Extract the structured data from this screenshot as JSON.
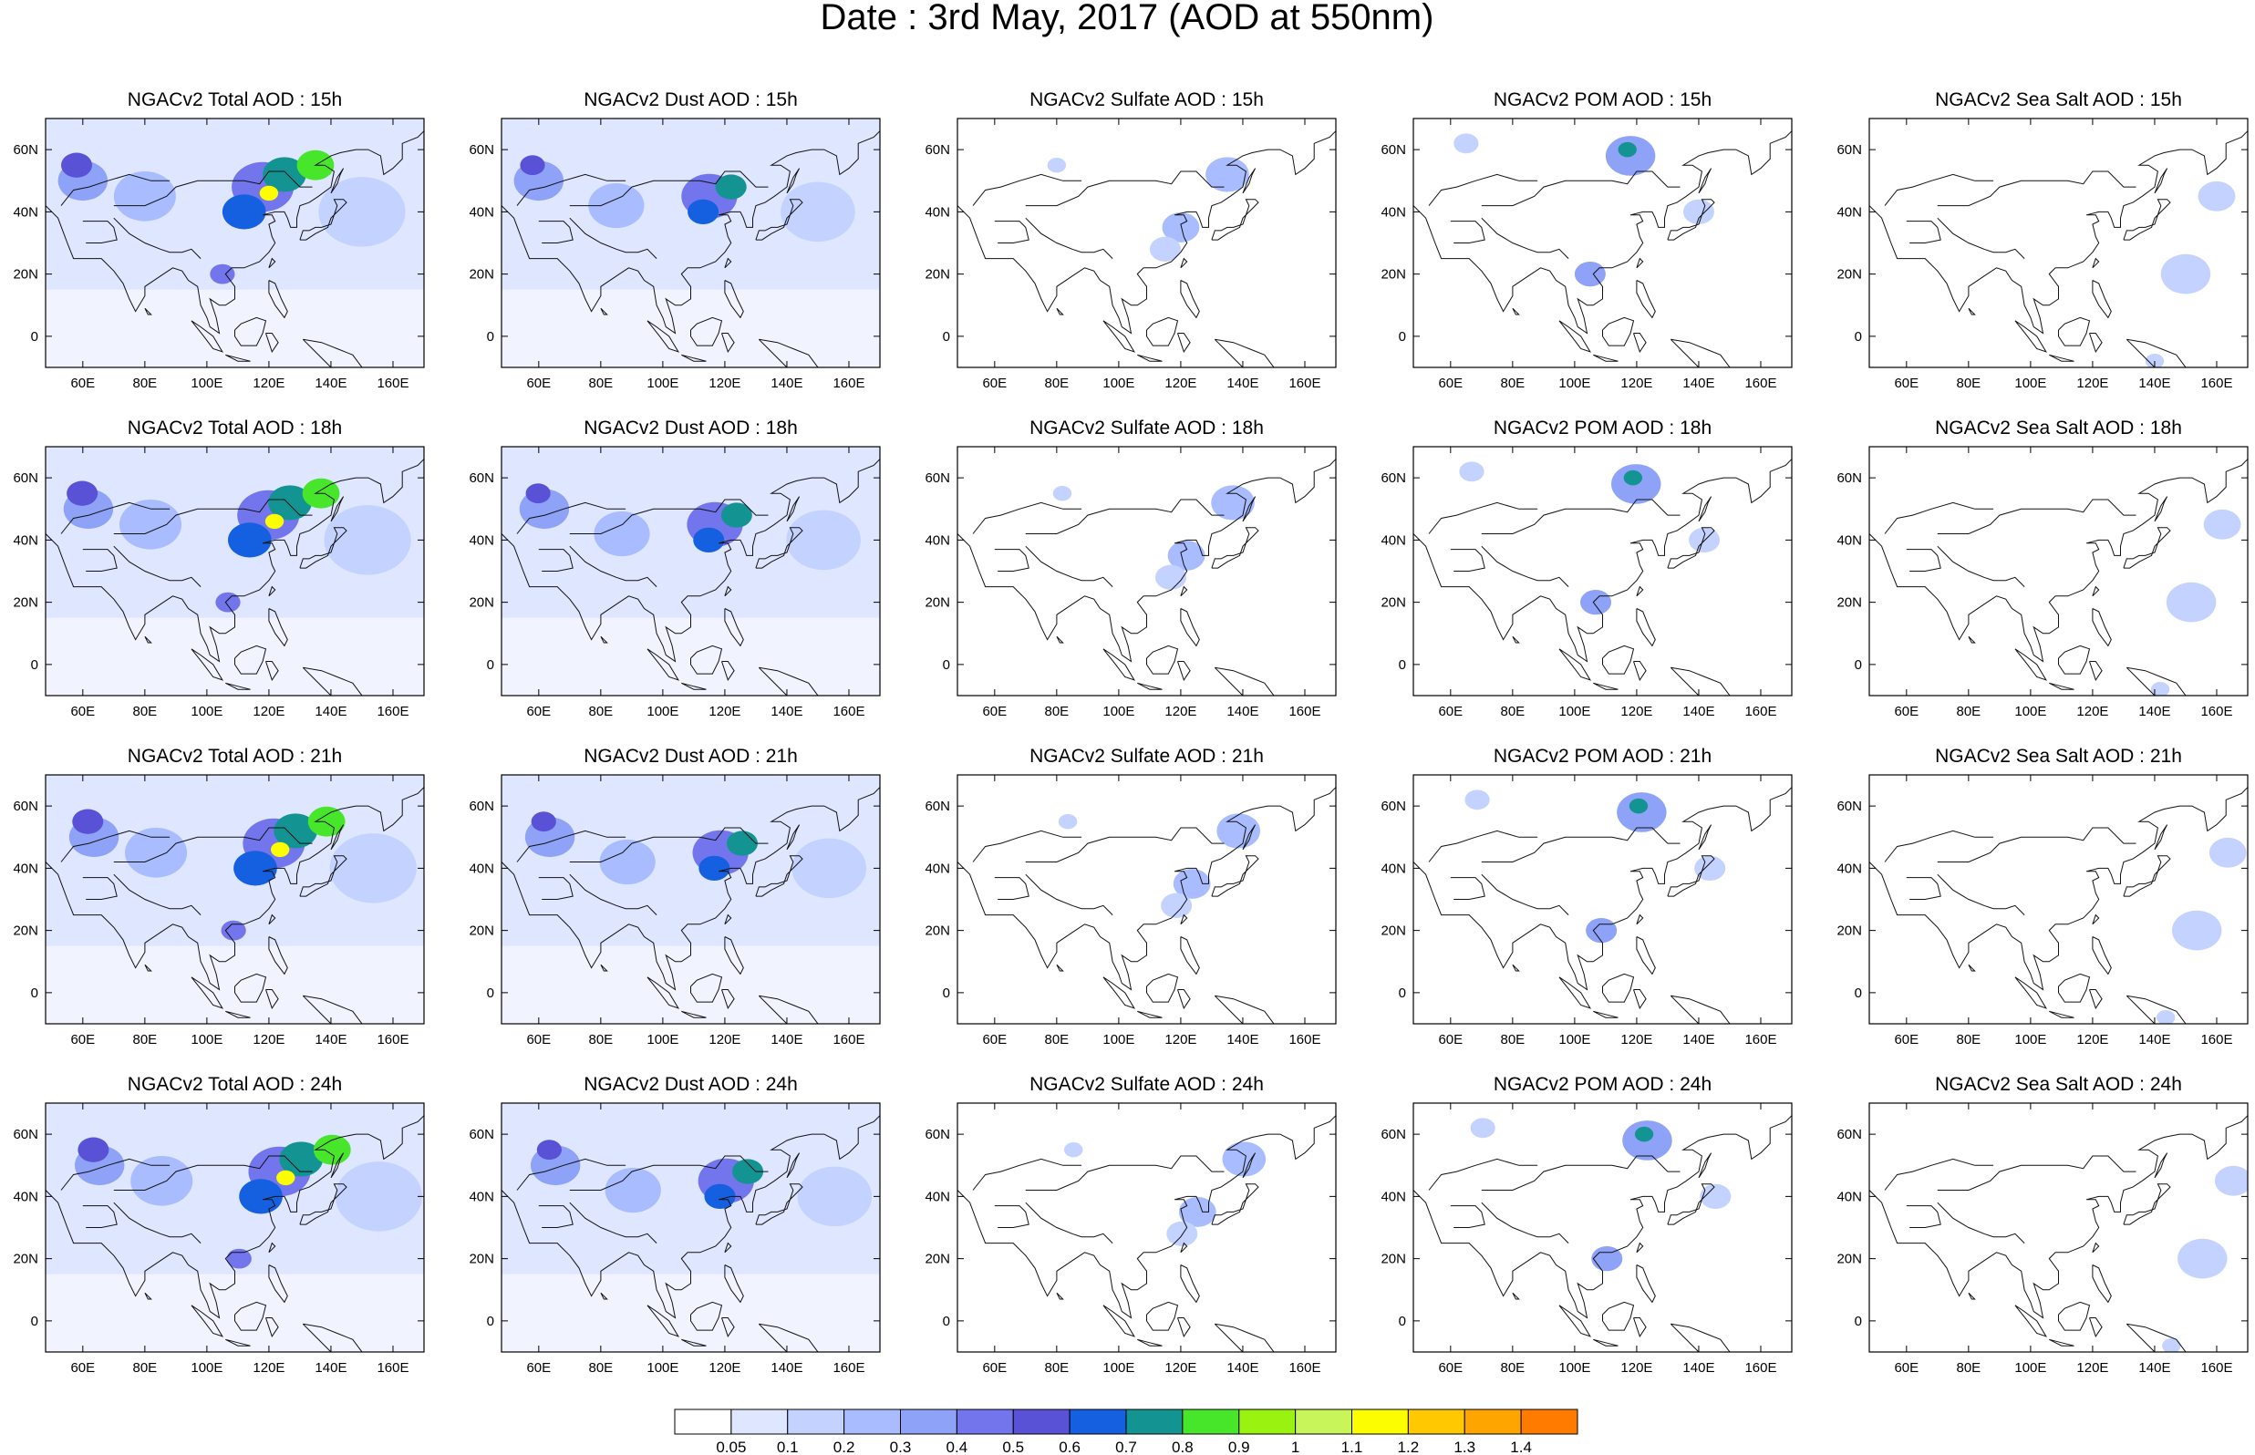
{
  "figure": {
    "title": "Date : 3rd May, 2017 (AOD at 550nm)"
  },
  "axes": {
    "lon_ticks": [
      "60E",
      "80E",
      "100E",
      "120E",
      "140E",
      "160E"
    ],
    "lon_values": [
      60,
      80,
      100,
      120,
      140,
      160
    ],
    "lat_ticks": [
      "60N",
      "40N",
      "20N",
      "0"
    ],
    "lat_values": [
      60,
      40,
      20,
      0
    ],
    "xlim": [
      48,
      170
    ],
    "ylim": [
      -10,
      70
    ]
  },
  "colorbar": {
    "labels": [
      "0.05",
      "0.1",
      "0.2",
      "0.3",
      "0.4",
      "0.5",
      "0.6",
      "0.7",
      "0.8",
      "0.9",
      "1",
      "1.1",
      "1.2",
      "1.3",
      "1.4"
    ],
    "colors": [
      "#ffffff",
      "#dfe6ff",
      "#c4d2ff",
      "#a8bcff",
      "#8ea2f7",
      "#7275ec",
      "#5a52d6",
      "#1460e0",
      "#139493",
      "#48e62b",
      "#99f20f",
      "#c8f55a",
      "#fdfd02",
      "#ffc800",
      "#ffa500",
      "#ff7b00",
      "#ff1d00"
    ]
  },
  "panels": [
    {
      "title": "NGACv2 Total AOD : 15h",
      "species": "total",
      "hour": 15
    },
    {
      "title": "NGACv2 Dust AOD : 15h",
      "species": "dust",
      "hour": 15
    },
    {
      "title": "NGACv2 Sulfate AOD : 15h",
      "species": "sulfate",
      "hour": 15
    },
    {
      "title": "NGACv2 POM AOD : 15h",
      "species": "pom",
      "hour": 15
    },
    {
      "title": "NGACv2 Sea Salt AOD : 15h",
      "species": "seasalt",
      "hour": 15
    },
    {
      "title": "NGACv2 Total AOD : 18h",
      "species": "total",
      "hour": 18
    },
    {
      "title": "NGACv2 Dust AOD : 18h",
      "species": "dust",
      "hour": 18
    },
    {
      "title": "NGACv2 Sulfate AOD : 18h",
      "species": "sulfate",
      "hour": 18
    },
    {
      "title": "NGACv2 POM AOD : 18h",
      "species": "pom",
      "hour": 18
    },
    {
      "title": "NGACv2 Sea Salt AOD : 18h",
      "species": "seasalt",
      "hour": 18
    },
    {
      "title": "NGACv2 Total AOD : 21h",
      "species": "total",
      "hour": 21
    },
    {
      "title": "NGACv2 Dust AOD : 21h",
      "species": "dust",
      "hour": 21
    },
    {
      "title": "NGACv2 Sulfate AOD : 21h",
      "species": "sulfate",
      "hour": 21
    },
    {
      "title": "NGACv2 POM AOD : 21h",
      "species": "pom",
      "hour": 21
    },
    {
      "title": "NGACv2 Sea Salt AOD : 21h",
      "species": "seasalt",
      "hour": 21
    },
    {
      "title": "NGACv2 Total AOD : 24h",
      "species": "total",
      "hour": 24
    },
    {
      "title": "NGACv2 Dust AOD : 24h",
      "species": "dust",
      "hour": 24
    },
    {
      "title": "NGACv2 Sulfate AOD : 24h",
      "species": "sulfate",
      "hour": 24
    },
    {
      "title": "NGACv2 POM AOD : 24h",
      "species": "pom",
      "hour": 24
    },
    {
      "title": "NGACv2 Sea Salt  AOD : 24h",
      "species": "seasalt",
      "hour": 24
    }
  ],
  "aerosol_plumes": {
    "total": {
      "background": 1,
      "spots": [
        {
          "lon": 118,
          "lat": 48,
          "r": 10,
          "level": 5
        },
        {
          "lon": 112,
          "lat": 40,
          "r": 7,
          "level": 7
        },
        {
          "lon": 125,
          "lat": 52,
          "r": 7,
          "level": 8
        },
        {
          "lon": 135,
          "lat": 55,
          "r": 6,
          "level": 9
        },
        {
          "lon": 120,
          "lat": 46,
          "r": 3,
          "level": 12
        },
        {
          "lon": 60,
          "lat": 50,
          "r": 8,
          "level": 4
        },
        {
          "lon": 58,
          "lat": 55,
          "r": 5,
          "level": 6
        },
        {
          "lon": 80,
          "lat": 45,
          "r": 10,
          "level": 3
        },
        {
          "lon": 105,
          "lat": 20,
          "r": 4,
          "level": 5
        },
        {
          "lon": 150,
          "lat": 40,
          "r": 14,
          "level": 2
        }
      ]
    },
    "dust": {
      "background": 1,
      "spots": [
        {
          "lon": 115,
          "lat": 45,
          "r": 9,
          "level": 5
        },
        {
          "lon": 113,
          "lat": 40,
          "r": 5,
          "level": 7
        },
        {
          "lon": 122,
          "lat": 48,
          "r": 5,
          "level": 8
        },
        {
          "lon": 60,
          "lat": 50,
          "r": 8,
          "level": 4
        },
        {
          "lon": 58,
          "lat": 55,
          "r": 4,
          "level": 6
        },
        {
          "lon": 85,
          "lat": 42,
          "r": 9,
          "level": 3
        },
        {
          "lon": 150,
          "lat": 40,
          "r": 12,
          "level": 2
        }
      ]
    },
    "sulfate": {
      "background": 0,
      "spots": [
        {
          "lon": 135,
          "lat": 52,
          "r": 7,
          "level": 3
        },
        {
          "lon": 120,
          "lat": 35,
          "r": 6,
          "level": 3
        },
        {
          "lon": 115,
          "lat": 28,
          "r": 5,
          "level": 2
        },
        {
          "lon": 80,
          "lat": 55,
          "r": 3,
          "level": 2
        }
      ]
    },
    "pom": {
      "background": 0,
      "spots": [
        {
          "lon": 118,
          "lat": 58,
          "r": 8,
          "level": 4
        },
        {
          "lon": 117,
          "lat": 60,
          "r": 3,
          "level": 8
        },
        {
          "lon": 105,
          "lat": 20,
          "r": 5,
          "level": 4
        },
        {
          "lon": 140,
          "lat": 40,
          "r": 5,
          "level": 2
        },
        {
          "lon": 65,
          "lat": 62,
          "r": 4,
          "level": 2
        }
      ]
    },
    "seasalt": {
      "background": 0,
      "spots": [
        {
          "lon": 160,
          "lat": 45,
          "r": 6,
          "level": 2
        },
        {
          "lon": 150,
          "lat": 20,
          "r": 8,
          "level": 2
        },
        {
          "lon": 140,
          "lat": -8,
          "r": 3,
          "level": 2
        }
      ]
    }
  }
}
